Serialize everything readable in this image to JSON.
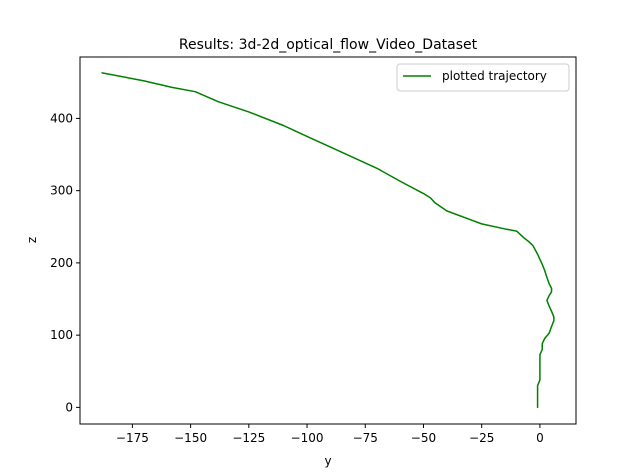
{
  "chart_data": {
    "type": "line",
    "title": "Results: 3d-2d_optical_flow_Video_Dataset",
    "xlabel": "y",
    "ylabel": "z",
    "xlim": [
      -197.5,
      15.5
    ],
    "ylim": [
      -23,
      485
    ],
    "xticks": [
      -175,
      -150,
      -125,
      -100,
      -75,
      -50,
      -25,
      0
    ],
    "xtick_labels": [
      "−175",
      "−150",
      "−125",
      "−100",
      "−75",
      "−50",
      "−25",
      "0"
    ],
    "yticks": [
      0,
      100,
      200,
      300,
      400
    ],
    "ytick_labels": [
      "0",
      "100",
      "200",
      "300",
      "400"
    ],
    "grid": false,
    "legend_position": "top-right",
    "series": [
      {
        "name": "plotted trajectory",
        "color": "#008000",
        "x": [
          -188,
          -170,
          -158,
          -148,
          -138,
          -125,
          -110,
          -100,
          -85,
          -70,
          -60,
          -50,
          -47,
          -45,
          -40,
          -30,
          -25,
          -15,
          -10,
          -7,
          -5,
          -3,
          -2,
          -1,
          0,
          1,
          2,
          3,
          4,
          5,
          5,
          4,
          3,
          4,
          5,
          6,
          6,
          5,
          4,
          2,
          1,
          1,
          0,
          0,
          0,
          0,
          0,
          -1,
          -1,
          -1
        ],
        "y": [
          463,
          452,
          443,
          437,
          423,
          409,
          390,
          375,
          353,
          331,
          313,
          296,
          290,
          283,
          272,
          260,
          254,
          247,
          244,
          235,
          230,
          224,
          218,
          212,
          205,
          198,
          190,
          180,
          171,
          165,
          160,
          155,
          148,
          140,
          133,
          125,
          120,
          112,
          103,
          95,
          88,
          80,
          73,
          66,
          58,
          48,
          38,
          30,
          15,
          0
        ]
      }
    ]
  }
}
